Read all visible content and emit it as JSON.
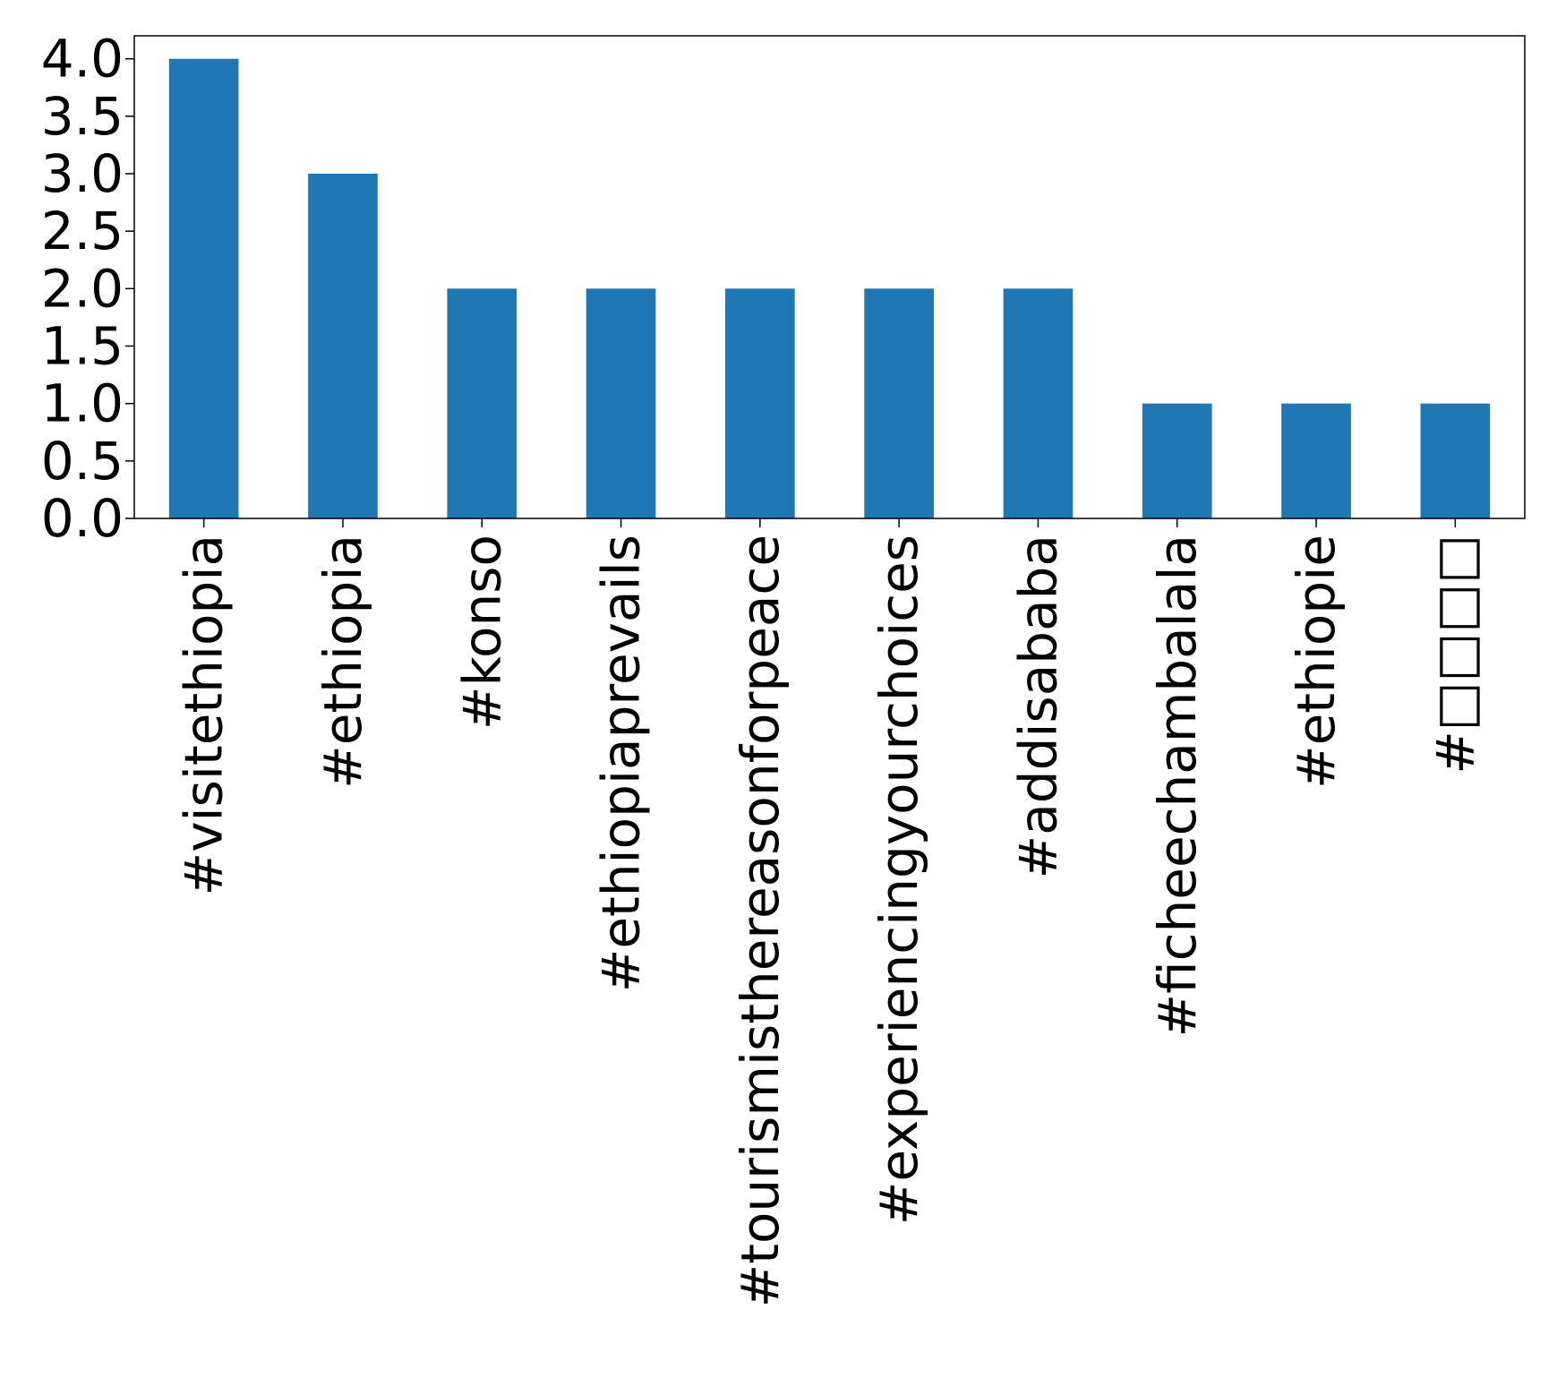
{
  "chart_data": {
    "type": "bar",
    "title": "",
    "xlabel": "",
    "ylabel": "",
    "categories": [
      "#visitethiopia",
      "#ethiopia",
      "#konso",
      "#ethiopiaprevails",
      "#tourismisthereasonforpeace",
      "#experiencingyourchoices",
      "#addisababa",
      "#ficheechambalala",
      "#ethiopie",
      "#□□□□"
    ],
    "values": [
      4,
      3,
      2,
      2,
      2,
      2,
      2,
      1,
      1,
      1
    ],
    "ylim": [
      0,
      4.2
    ],
    "yticks": [
      "0.0",
      "0.5",
      "1.0",
      "1.5",
      "2.0",
      "2.5",
      "3.0",
      "3.5",
      "4.0"
    ],
    "ytick_values": [
      0,
      0.5,
      1.0,
      1.5,
      2.0,
      2.5,
      3.0,
      3.5,
      4.0
    ],
    "grid": false,
    "legend": "none",
    "bar_color": "#1f77b4",
    "axis_color": "#000000"
  }
}
